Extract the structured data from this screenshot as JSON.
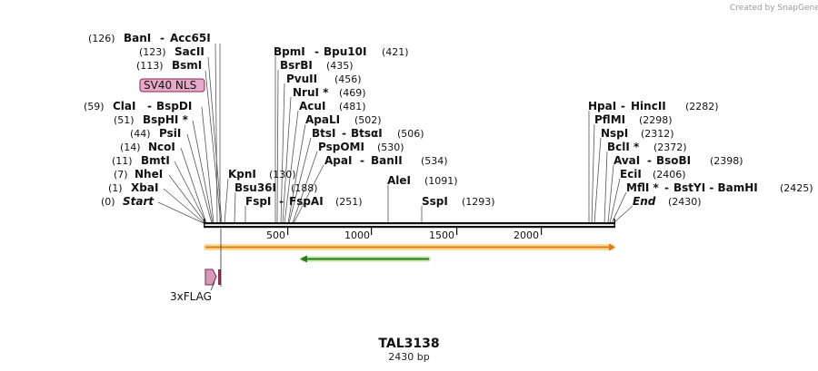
{
  "watermark": "Created by SnapGene",
  "map": {
    "name": "TAL3138",
    "length_label": "2430 bp",
    "length_bp": 2430,
    "ticks": [
      "500",
      "1000",
      "1500",
      "2000"
    ],
    "tick_values": [
      500,
      1000,
      1500,
      2000
    ]
  },
  "enzymes_left": [
    {
      "pos": "(126)",
      "name": "BanI",
      "name2": "Acc65I",
      "bp": 126
    },
    {
      "pos": "(123)",
      "name": "SacII",
      "name2": "",
      "bp": 123
    },
    {
      "pos": "(113)",
      "name": "BsmI",
      "name2": "",
      "bp": 113
    },
    {
      "pos": "(59)",
      "name": "ClaI",
      "name2": "BspDI",
      "bp": 59
    },
    {
      "pos": "(51)",
      "name": "BspHI *",
      "name2": "",
      "bp": 51
    },
    {
      "pos": "(44)",
      "name": "PsiI",
      "name2": "",
      "bp": 44
    },
    {
      "pos": "(14)",
      "name": "NcoI",
      "name2": "",
      "bp": 14
    },
    {
      "pos": "(11)",
      "name": "BmtI",
      "name2": "",
      "bp": 11
    },
    {
      "pos": "(7)",
      "name": "NheI",
      "name2": "",
      "bp": 7
    },
    {
      "pos": "(1)",
      "name": "XbaI",
      "name2": "",
      "bp": 1
    },
    {
      "pos": "(0)",
      "name": "Start",
      "name2": "",
      "bp": 0
    }
  ],
  "enzymes_mid": [
    {
      "name": "BpmI",
      "name2": "Bpu10I",
      "pos": "(421)",
      "bp": 421
    },
    {
      "name": "BsrBI",
      "name2": "",
      "pos": "(435)",
      "bp": 435
    },
    {
      "name": "PvuII",
      "name2": "",
      "pos": "(456)",
      "bp": 456
    },
    {
      "name": "NruI *",
      "name2": "",
      "pos": "(469)",
      "bp": 469
    },
    {
      "name": "AcuI",
      "name2": "",
      "pos": "(481)",
      "bp": 481
    },
    {
      "name": "ApaLI",
      "name2": "",
      "pos": "(502)",
      "bp": 502
    },
    {
      "name": "BtsI",
      "name2": "BtsαI",
      "pos": "(506)",
      "bp": 506
    },
    {
      "name": "PspOMI",
      "name2": "",
      "pos": "(530)",
      "bp": 530
    },
    {
      "name": "ApaI",
      "name2": "BanII",
      "pos": "(534)",
      "bp": 534
    },
    {
      "name": "KpnI",
      "name2": "",
      "pos": "(130)",
      "bp": 130
    },
    {
      "name": "Bsu36I",
      "name2": "",
      "pos": "(188)",
      "bp": 188
    },
    {
      "name": "FspI",
      "name2": "FspAI",
      "pos": "(251)",
      "bp": 251
    },
    {
      "name": "AleI",
      "name2": "",
      "pos": "(1091)",
      "bp": 1091
    },
    {
      "name": "SspI",
      "name2": "",
      "pos": "(1293)",
      "bp": 1293
    }
  ],
  "enzymes_right": [
    {
      "name": "HpaI",
      "name2": "HincII",
      "pos": "(2282)",
      "bp": 2282
    },
    {
      "name": "PflMI",
      "name2": "",
      "pos": "(2298)",
      "bp": 2298
    },
    {
      "name": "NspI",
      "name2": "",
      "pos": "(2312)",
      "bp": 2312
    },
    {
      "name": "BclI *",
      "name2": "",
      "pos": "(2372)",
      "bp": 2372
    },
    {
      "name": "AvaI",
      "name2": "BsoBI",
      "pos": "(2398)",
      "bp": 2398
    },
    {
      "name": "EciI",
      "name2": "",
      "pos": "(2406)",
      "bp": 2406
    },
    {
      "name": "MflI *",
      "name2": "BstYI  -  BamHI",
      "pos": "(2425)",
      "bp": 2425
    },
    {
      "name": "End",
      "name2": "",
      "pos": "(2430)",
      "bp": 2430
    }
  ],
  "features": {
    "sv40_nls": "SV40 NLS",
    "flag": "3xFLAG"
  },
  "colors": {
    "backbone": "#111111",
    "orf_track": "#f2c15a",
    "orf_arrow": "#e07a1a",
    "green_feature": "#6abf3a",
    "nls_box": "#e8a9c8",
    "flag_box": "#d89ab8",
    "flag_dark": "#8a3050"
  }
}
